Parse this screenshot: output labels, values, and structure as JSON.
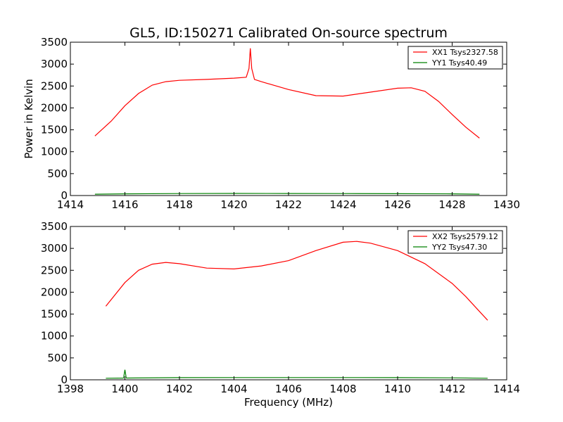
{
  "chart_data": [
    {
      "type": "line",
      "title": "GL5, ID:150271 Calibrated On-source spectrum",
      "xlabel": "",
      "ylabel": "Power in Kelvin",
      "xlim": [
        1414,
        1430
      ],
      "ylim": [
        0,
        3500
      ],
      "xticks": [
        1414,
        1416,
        1418,
        1420,
        1422,
        1424,
        1426,
        1428,
        1430
      ],
      "yticks": [
        0,
        500,
        1000,
        1500,
        2000,
        2500,
        3000,
        3500
      ],
      "legend_position": "top-right",
      "series": [
        {
          "name": "XX1 Tsys2327.58",
          "color": "#ff0000",
          "x": [
            1414.9,
            1415.5,
            1416.0,
            1416.5,
            1417.0,
            1417.5,
            1418.0,
            1419.0,
            1420.0,
            1420.45,
            1420.55,
            1420.6,
            1420.65,
            1420.75,
            1421.0,
            1422.0,
            1423.0,
            1424.0,
            1425.0,
            1426.0,
            1426.5,
            1427.0,
            1427.5,
            1428.0,
            1428.5,
            1429.0
          ],
          "y": [
            1360,
            1700,
            2050,
            2330,
            2520,
            2600,
            2630,
            2650,
            2680,
            2700,
            2900,
            3360,
            2900,
            2650,
            2600,
            2420,
            2280,
            2270,
            2360,
            2450,
            2460,
            2380,
            2150,
            1850,
            1560,
            1310
          ]
        },
        {
          "name": "YY1 Tsys40.49",
          "color": "#008000",
          "x": [
            1414.9,
            1416.0,
            1418.0,
            1420.0,
            1422.0,
            1424.0,
            1426.0,
            1428.0,
            1429.0
          ],
          "y": [
            30,
            38,
            45,
            48,
            47,
            45,
            42,
            38,
            30
          ]
        }
      ]
    },
    {
      "type": "line",
      "title": "",
      "xlabel": "Frequency (MHz)",
      "ylabel": "",
      "xlim": [
        1398,
        1414
      ],
      "ylim": [
        0,
        3500
      ],
      "xticks": [
        1398,
        1400,
        1402,
        1404,
        1406,
        1408,
        1410,
        1412,
        1414
      ],
      "yticks": [
        0,
        500,
        1000,
        1500,
        2000,
        2500,
        3000,
        3500
      ],
      "legend_position": "top-right",
      "series": [
        {
          "name": "XX2 Tsys2579.12",
          "color": "#ff0000",
          "x": [
            1399.3,
            1400.0,
            1400.5,
            1401.0,
            1401.5,
            1402.0,
            1403.0,
            1404.0,
            1405.0,
            1406.0,
            1407.0,
            1408.0,
            1408.5,
            1409.0,
            1410.0,
            1411.0,
            1412.0,
            1412.5,
            1413.0,
            1413.3
          ],
          "y": [
            1680,
            2220,
            2500,
            2640,
            2680,
            2650,
            2550,
            2530,
            2600,
            2720,
            2950,
            3140,
            3160,
            3120,
            2950,
            2650,
            2200,
            1900,
            1560,
            1360
          ]
        },
        {
          "name": "YY2 Tsys47.30",
          "color": "#008000",
          "x": [
            1399.3,
            1399.95,
            1400.0,
            1400.05,
            1402.0,
            1404.0,
            1406.0,
            1408.0,
            1410.0,
            1412.0,
            1413.3
          ],
          "y": [
            35,
            40,
            230,
            40,
            50,
            52,
            52,
            52,
            50,
            45,
            35
          ]
        }
      ]
    }
  ]
}
